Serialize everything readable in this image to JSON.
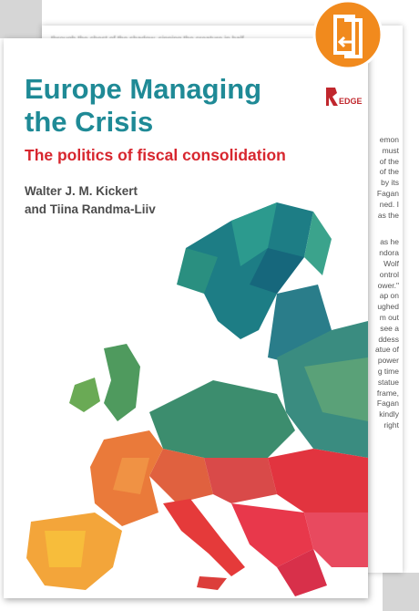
{
  "cover": {
    "title_lines": [
      "Europe Managing",
      "the Crisis"
    ],
    "subtitle": "The politics of fiscal consolidation",
    "authors": [
      "Walter J. M. Kickert",
      "and Tiina Randma-Liiv"
    ],
    "publisher_fragment": "EDGE"
  },
  "back_page": {
    "top_line": "through the chest of the shadow, sinning the creature in half",
    "line_endings": [
      "emon",
      "must",
      "of the",
      "of the",
      "by its",
      "Fagan",
      "ned. I",
      "as the",
      "as he",
      "ndora",
      "Wolf",
      "ontrol",
      "ower.\"",
      "ap on",
      "ughed",
      "m out",
      "see a",
      "ddess",
      "atue of",
      "power",
      "g time",
      "statue",
      "frame,",
      "Fagan",
      "kindly",
      "right"
    ]
  }
}
